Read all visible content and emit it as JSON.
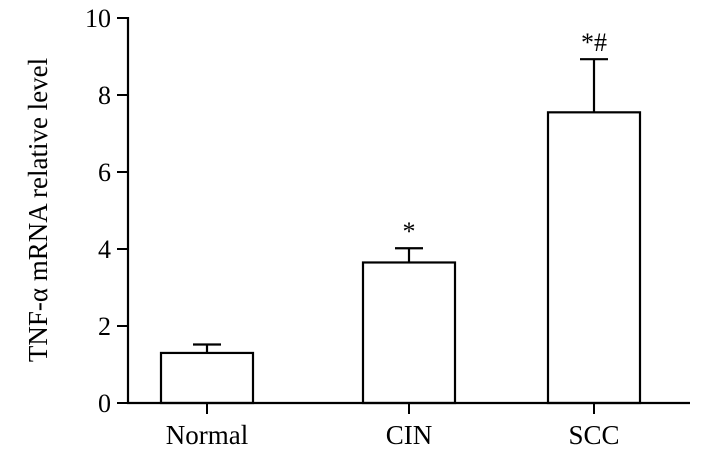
{
  "chart_data": {
    "type": "bar",
    "title": "",
    "xlabel": "",
    "ylabel": "TNF-α mRNA relative level",
    "categories": [
      "Normal",
      "CIN",
      "SCC"
    ],
    "values": [
      1.3,
      3.65,
      7.55
    ],
    "error_upper": [
      1.52,
      4.02,
      8.93
    ],
    "annotations": [
      "",
      "*",
      "*#"
    ],
    "ylim": [
      0,
      10
    ],
    "yticks": [
      "0",
      "2",
      "4",
      "6",
      "8",
      "10"
    ],
    "grid": false,
    "legend": "none",
    "colors": {
      "bar_fill": "#ffffff",
      "stroke": "#000000"
    }
  }
}
